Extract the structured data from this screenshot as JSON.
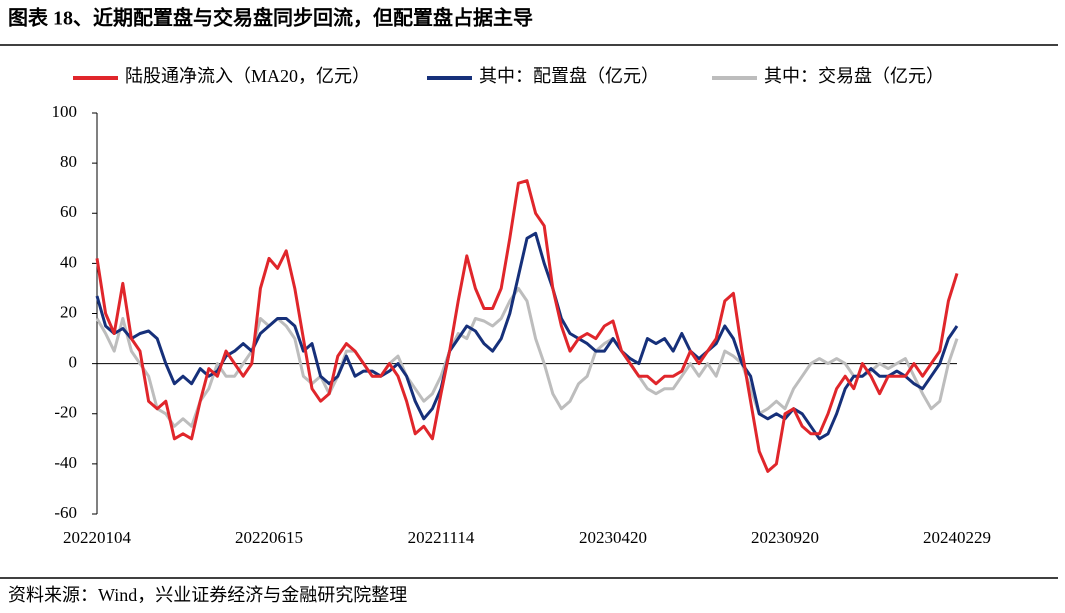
{
  "chart_data": {
    "type": "line",
    "title": "图表 18、近期配置盘与交易盘同步回流，但配置盘占据主导",
    "source": "资料来源：Wind，兴业证券经济与金融研究院整理",
    "categories": [
      "20220104",
      null,
      null,
      null,
      null,
      null,
      null,
      null,
      null,
      null,
      null,
      null,
      null,
      null,
      null,
      null,
      null,
      null,
      null,
      null,
      "20220615",
      null,
      null,
      null,
      null,
      null,
      null,
      null,
      null,
      null,
      null,
      null,
      null,
      null,
      null,
      null,
      null,
      null,
      null,
      null,
      "20221114",
      null,
      null,
      null,
      null,
      null,
      null,
      null,
      null,
      null,
      null,
      null,
      null,
      null,
      null,
      null,
      null,
      null,
      null,
      null,
      "20230420",
      null,
      null,
      null,
      null,
      null,
      null,
      null,
      null,
      null,
      null,
      null,
      null,
      null,
      null,
      null,
      null,
      null,
      null,
      null,
      "20230920",
      null,
      null,
      null,
      null,
      null,
      null,
      null,
      null,
      null,
      null,
      null,
      null,
      null,
      null,
      null,
      null,
      null,
      null,
      null,
      "20240229"
    ],
    "ylim": [
      -60,
      100
    ],
    "yticks": [
      -60,
      -40,
      -20,
      0,
      20,
      40,
      60,
      80,
      100
    ],
    "series": [
      {
        "name": "陆股通净流入（MA20，亿元）",
        "color": "#e0262b",
        "values": [
          42,
          20,
          12,
          32,
          10,
          5,
          -15,
          -18,
          -15,
          -30,
          -28,
          -30,
          -15,
          -2,
          -5,
          5,
          0,
          -5,
          0,
          30,
          42,
          38,
          45,
          30,
          10,
          -10,
          -15,
          -12,
          3,
          8,
          5,
          0,
          -5,
          -5,
          0,
          -5,
          -15,
          -28,
          -25,
          -30,
          -12,
          5,
          25,
          43,
          30,
          22,
          22,
          30,
          50,
          72,
          73,
          60,
          55,
          30,
          15,
          5,
          10,
          12,
          10,
          15,
          17,
          5,
          0,
          -5,
          -5,
          -8,
          -5,
          -5,
          -3,
          5,
          0,
          5,
          10,
          25,
          28,
          5,
          -15,
          -35,
          -43,
          -40,
          -20,
          -18,
          -25,
          -28,
          -28,
          -20,
          -10,
          -5,
          -10,
          0,
          -5,
          -12,
          -5,
          -5,
          -5,
          0,
          -5,
          0,
          5,
          25,
          36
        ]
      },
      {
        "name": "其中：配置盘（亿元）",
        "color": "#16307a",
        "values": [
          27,
          15,
          12,
          14,
          10,
          12,
          13,
          10,
          0,
          -8,
          -5,
          -8,
          -2,
          -5,
          -3,
          3,
          5,
          8,
          5,
          12,
          15,
          18,
          18,
          15,
          5,
          8,
          -5,
          -8,
          -5,
          3,
          -5,
          -3,
          -3,
          -5,
          -3,
          0,
          -5,
          -15,
          -22,
          -18,
          -10,
          5,
          10,
          15,
          13,
          8,
          5,
          10,
          20,
          35,
          50,
          52,
          40,
          30,
          18,
          12,
          10,
          8,
          5,
          5,
          10,
          5,
          2,
          0,
          10,
          8,
          10,
          5,
          12,
          5,
          2,
          5,
          8,
          15,
          10,
          0,
          -5,
          -20,
          -22,
          -20,
          -22,
          -18,
          -20,
          -25,
          -30,
          -28,
          -20,
          -10,
          -5,
          -5,
          -2,
          -5,
          -5,
          -3,
          -5,
          -8,
          -10,
          -5,
          0,
          10,
          15
        ]
      },
      {
        "name": "其中：交易盘（亿元）",
        "color": "#bdbdbd",
        "values": [
          18,
          12,
          5,
          18,
          5,
          0,
          -5,
          -18,
          -20,
          -25,
          -22,
          -25,
          -15,
          -10,
          0,
          -5,
          -5,
          0,
          5,
          18,
          15,
          18,
          15,
          10,
          -5,
          -8,
          -5,
          -12,
          -5,
          5,
          5,
          0,
          -5,
          -5,
          0,
          3,
          -5,
          -10,
          -15,
          -12,
          -5,
          5,
          12,
          10,
          18,
          17,
          15,
          18,
          25,
          30,
          25,
          10,
          0,
          -12,
          -18,
          -15,
          -8,
          -5,
          5,
          8,
          10,
          5,
          0,
          -5,
          -10,
          -12,
          -10,
          -10,
          -5,
          0,
          -5,
          0,
          -5,
          5,
          3,
          0,
          -10,
          -20,
          -18,
          -15,
          -18,
          -10,
          -5,
          0,
          2,
          0,
          2,
          0,
          -5,
          -5,
          -3,
          0,
          -2,
          0,
          2,
          -5,
          -12,
          -18,
          -15,
          0,
          10
        ]
      }
    ]
  }
}
